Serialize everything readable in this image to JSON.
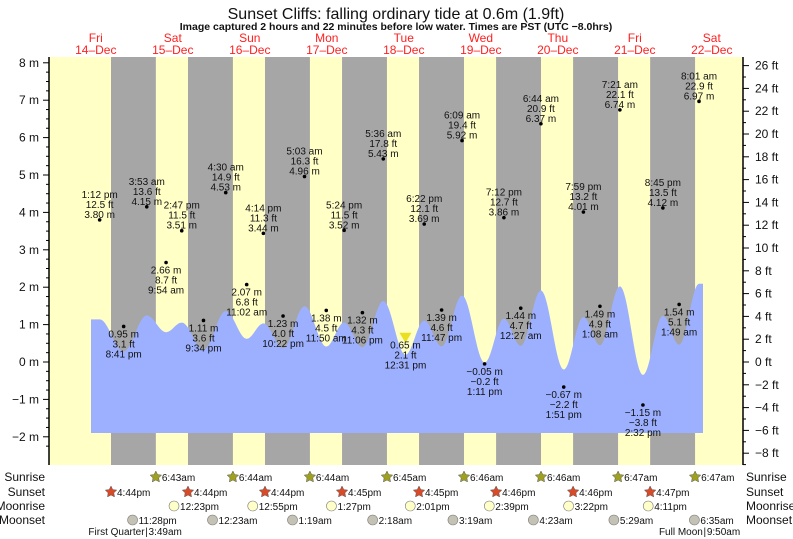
{
  "title": "Sunset Cliffs: falling  ordinary tide at 0.6m (1.9ft)",
  "subtitle": "Image captured 2 hours and 22 minutes before low water. Times are PST (UTC −8.0hrs)",
  "colors": {
    "day": "#ffffc6",
    "night": "#a6a6a6",
    "tide": "#9db0ff",
    "day_label": "#ff2020",
    "sunrise": "#a0a020",
    "sunset": "#d84a28",
    "moonrise": "#ffffc8",
    "moonset": "#c4c2b4",
    "current_marker": "#e8e020"
  },
  "chart_data": {
    "type": "area",
    "title": "Sunset Cliffs: falling  ordinary tide at 0.6m (1.9ft)",
    "ylim_m": [
      -2,
      8
    ],
    "ylim_ft": [
      -8,
      26
    ],
    "y_ticks_left": [
      "8 m",
      "7 m",
      "6 m",
      "5 m",
      "4 m",
      "3 m",
      "2 m",
      "1 m",
      "0 m",
      "−1 m",
      "−2 m"
    ],
    "y_ticks_right": [
      "26 ft",
      "24 ft",
      "22 ft",
      "20 ft",
      "18 ft",
      "16 ft",
      "14 ft",
      "12 ft",
      "10 ft",
      "8 ft",
      "6 ft",
      "4 ft",
      "2 ft",
      "0 ft",
      "−2 ft",
      "−4 ft",
      "−6 ft",
      "−8 ft"
    ],
    "days": [
      {
        "weekday": "Fri",
        "date": "14–Dec",
        "d": 14
      },
      {
        "weekday": "Sat",
        "date": "15–Dec",
        "d": 15
      },
      {
        "weekday": "Sun",
        "date": "16–Dec",
        "d": 16
      },
      {
        "weekday": "Mon",
        "date": "17–Dec",
        "d": 17
      },
      {
        "weekday": "Tue",
        "date": "18–Dec",
        "d": 18
      },
      {
        "weekday": "Wed",
        "date": "19–Dec",
        "d": 19
      },
      {
        "weekday": "Thu",
        "date": "20–Dec",
        "d": 20
      },
      {
        "weekday": "Fri",
        "date": "21–Dec",
        "d": 21
      },
      {
        "weekday": "Sat",
        "date": "22–Dec",
        "d": 22
      }
    ],
    "extremes": [
      {
        "d": 14,
        "time": "1:12 pm",
        "ft": "12.5 ft",
        "m": "3.80 m",
        "v": 3.8,
        "type": "high"
      },
      {
        "d": 14,
        "time": "8:41 pm",
        "ft": "3.1 ft",
        "m": "0.95 m",
        "v": 0.95,
        "type": "low"
      },
      {
        "d": 15,
        "time": "3:53 am",
        "ft": "13.6 ft",
        "m": "4.15 m",
        "v": 4.15,
        "type": "high"
      },
      {
        "d": 15,
        "time": "9:54 am",
        "ft": "8.7 ft",
        "m": "2.66 m",
        "v": 2.66,
        "type": "low"
      },
      {
        "d": 15,
        "time": "2:47 pm",
        "ft": "11.5 ft",
        "m": "3.51 m",
        "v": 3.51,
        "type": "high"
      },
      {
        "d": 15,
        "time": "9:34 pm",
        "ft": "3.6 ft",
        "m": "1.11 m",
        "v": 1.11,
        "type": "low"
      },
      {
        "d": 16,
        "time": "4:30 am",
        "ft": "14.9 ft",
        "m": "4.53 m",
        "v": 4.53,
        "type": "high"
      },
      {
        "d": 16,
        "time": "11:02 am",
        "ft": "6.8 ft",
        "m": "2.07 m",
        "v": 2.07,
        "type": "low"
      },
      {
        "d": 16,
        "time": "4:14 pm",
        "ft": "11.3 ft",
        "m": "3.44 m",
        "v": 3.44,
        "type": "high"
      },
      {
        "d": 16,
        "time": "10:22 pm",
        "ft": "4.0 ft",
        "m": "1.23 m",
        "v": 1.23,
        "type": "low"
      },
      {
        "d": 17,
        "time": "5:03 am",
        "ft": "16.3 ft",
        "m": "4.96 m",
        "v": 4.96,
        "type": "high"
      },
      {
        "d": 17,
        "time": "11:50 am",
        "ft": "4.5 ft",
        "m": "1.38 m",
        "v": 1.38,
        "type": "low"
      },
      {
        "d": 17,
        "time": "5:24 pm",
        "ft": "11.5 ft",
        "m": "3.52 m",
        "v": 3.52,
        "type": "high"
      },
      {
        "d": 17,
        "time": "11:06 pm",
        "ft": "4.3 ft",
        "m": "1.32 m",
        "v": 1.32,
        "type": "low"
      },
      {
        "d": 18,
        "time": "5:36 am",
        "ft": "17.8 ft",
        "m": "5.43 m",
        "v": 5.43,
        "type": "high"
      },
      {
        "d": 18,
        "time": "12:31 pm",
        "ft": "2.1 ft",
        "m": "0.65 m",
        "v": 0.65,
        "type": "low",
        "current": true
      },
      {
        "d": 18,
        "time": "6:22 pm",
        "ft": "12.1 ft",
        "m": "3.69 m",
        "v": 3.69,
        "type": "high"
      },
      {
        "d": 18,
        "time": "11:47 pm",
        "ft": "4.6 ft",
        "m": "1.39 m",
        "v": 1.39,
        "type": "low"
      },
      {
        "d": 19,
        "time": "6:09 am",
        "ft": "19.4 ft",
        "m": "5.92 m",
        "v": 5.92,
        "type": "high"
      },
      {
        "d": 19,
        "time": "1:11 pm",
        "ft": "−0.2 ft",
        "m": "−0.05 m",
        "v": -0.05,
        "type": "low"
      },
      {
        "d": 19,
        "time": "7:12 pm",
        "ft": "12.7 ft",
        "m": "3.86 m",
        "v": 3.86,
        "type": "high"
      },
      {
        "d": 20,
        "time": "12:27 am",
        "ft": "4.7 ft",
        "m": "1.44 m",
        "v": 1.44,
        "type": "low"
      },
      {
        "d": 20,
        "time": "6:44 am",
        "ft": "20.9 ft",
        "m": "6.37 m",
        "v": 6.37,
        "type": "high"
      },
      {
        "d": 20,
        "time": "1:51 pm",
        "ft": "−2.2 ft",
        "m": "−0.67 m",
        "v": -0.67,
        "type": "low"
      },
      {
        "d": 20,
        "time": "7:59 pm",
        "ft": "13.2 ft",
        "m": "4.01 m",
        "v": 4.01,
        "type": "high"
      },
      {
        "d": 21,
        "time": "1:08 am",
        "ft": "4.9 ft",
        "m": "1.49 m",
        "v": 1.49,
        "type": "low"
      },
      {
        "d": 21,
        "time": "7:21 am",
        "ft": "22.1 ft",
        "m": "6.74 m",
        "v": 6.74,
        "type": "high"
      },
      {
        "d": 21,
        "time": "2:32 pm",
        "ft": "−3.8 ft",
        "m": "−1.15 m",
        "v": -1.15,
        "type": "low"
      },
      {
        "d": 21,
        "time": "8:45 pm",
        "ft": "13.5 ft",
        "m": "4.12 m",
        "v": 4.12,
        "type": "high"
      },
      {
        "d": 22,
        "time": "1:49 am",
        "ft": "5.1 ft",
        "m": "1.54 m",
        "v": 1.54,
        "type": "low"
      },
      {
        "d": 22,
        "time": "8:01 am",
        "ft": "22.9 ft",
        "m": "6.97 m",
        "v": 6.97,
        "type": "high"
      }
    ]
  },
  "rows": {
    "sunrise": {
      "label": "Sunrise",
      "events": [
        {
          "d": 15,
          "t": "6:43am"
        },
        {
          "d": 16,
          "t": "6:44am"
        },
        {
          "d": 17,
          "t": "6:44am"
        },
        {
          "d": 18,
          "t": "6:45am"
        },
        {
          "d": 19,
          "t": "6:46am"
        },
        {
          "d": 20,
          "t": "6:46am"
        },
        {
          "d": 21,
          "t": "6:47am"
        },
        {
          "d": 22,
          "t": "6:47am"
        }
      ]
    },
    "sunset": {
      "label": "Sunset",
      "events": [
        {
          "d": 14,
          "t": "4:44pm"
        },
        {
          "d": 15,
          "t": "4:44pm"
        },
        {
          "d": 16,
          "t": "4:44pm"
        },
        {
          "d": 17,
          "t": "4:45pm"
        },
        {
          "d": 18,
          "t": "4:45pm"
        },
        {
          "d": 19,
          "t": "4:46pm"
        },
        {
          "d": 20,
          "t": "4:46pm"
        },
        {
          "d": 21,
          "t": "4:47pm"
        }
      ]
    },
    "moonrise": {
      "label": "Moonrise",
      "events": [
        {
          "d": 15,
          "t": "12:23pm"
        },
        {
          "d": 16,
          "t": "12:55pm"
        },
        {
          "d": 17,
          "t": "1:27pm"
        },
        {
          "d": 18,
          "t": "2:01pm"
        },
        {
          "d": 19,
          "t": "2:39pm"
        },
        {
          "d": 20,
          "t": "3:22pm"
        },
        {
          "d": 21,
          "t": "4:11pm"
        }
      ]
    },
    "moonset": {
      "label": "Moonset",
      "events": [
        {
          "d": 14,
          "t": "11:28pm"
        },
        {
          "d": 16,
          "t": "12:23am"
        },
        {
          "d": 17,
          "t": "1:19am"
        },
        {
          "d": 18,
          "t": "2:18am"
        },
        {
          "d": 19,
          "t": "3:19am"
        },
        {
          "d": 20,
          "t": "4:23am"
        },
        {
          "d": 21,
          "t": "5:29am"
        },
        {
          "d": 22,
          "t": "6:35am"
        }
      ]
    }
  },
  "moon_phases": [
    {
      "d": 15,
      "t": "3:49am",
      "name": "First Quarter",
      "time": "3:49am"
    },
    {
      "d": 22,
      "t": "9:50am",
      "name": "Full Moon",
      "time": "9:50am"
    }
  ]
}
